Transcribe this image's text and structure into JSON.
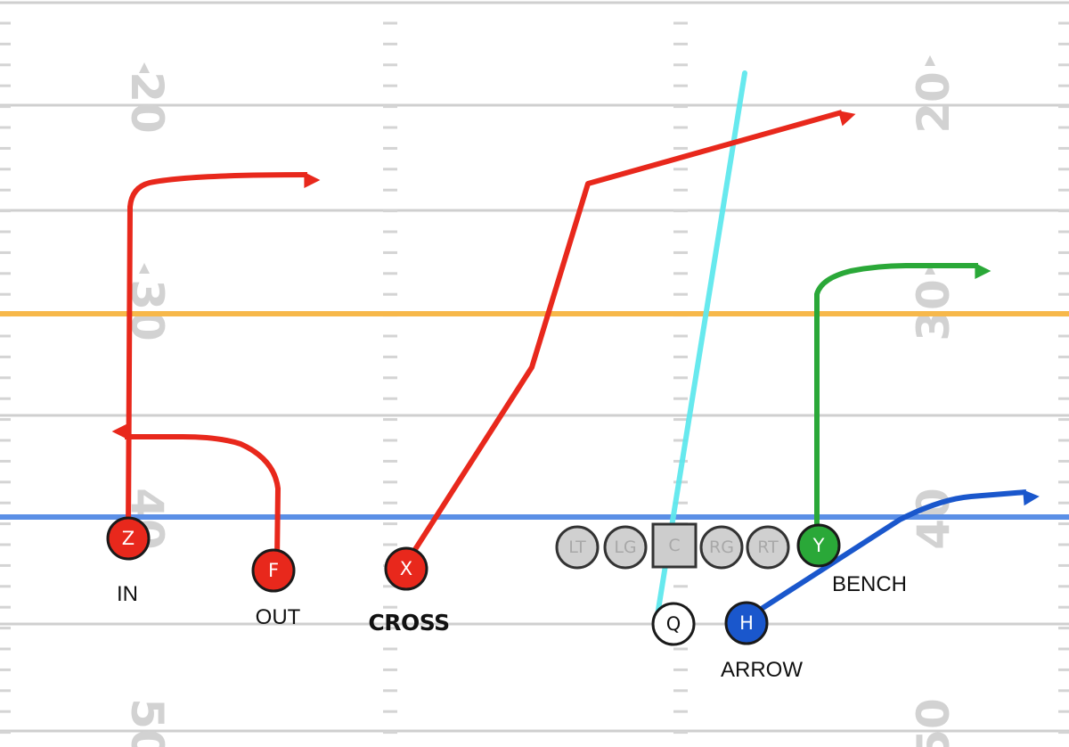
{
  "yard_markers": {
    "left": [
      "20",
      "30",
      "40",
      "50"
    ],
    "right": [
      "20",
      "30",
      "40",
      "50"
    ]
  },
  "offensive_line": [
    "LT",
    "LG",
    "C",
    "RG",
    "RT"
  ],
  "players": {
    "z": "Z",
    "f": "F",
    "x": "X",
    "y": "Y",
    "q": "Q",
    "h": "H"
  },
  "route_labels": {
    "z": "IN",
    "f": "OUT",
    "x": "CROSS",
    "y": "BENCH",
    "h": "ARROW"
  },
  "colors": {
    "route_red": "#e8281c",
    "route_green": "#2aa838",
    "route_blue": "#1a57cc",
    "qb_read_line": "#5fe8ee",
    "line_of_scrimmage": "#5b8fe6",
    "first_down_line": "#f7b84a",
    "lineman_fill": "#d0d0d0"
  }
}
